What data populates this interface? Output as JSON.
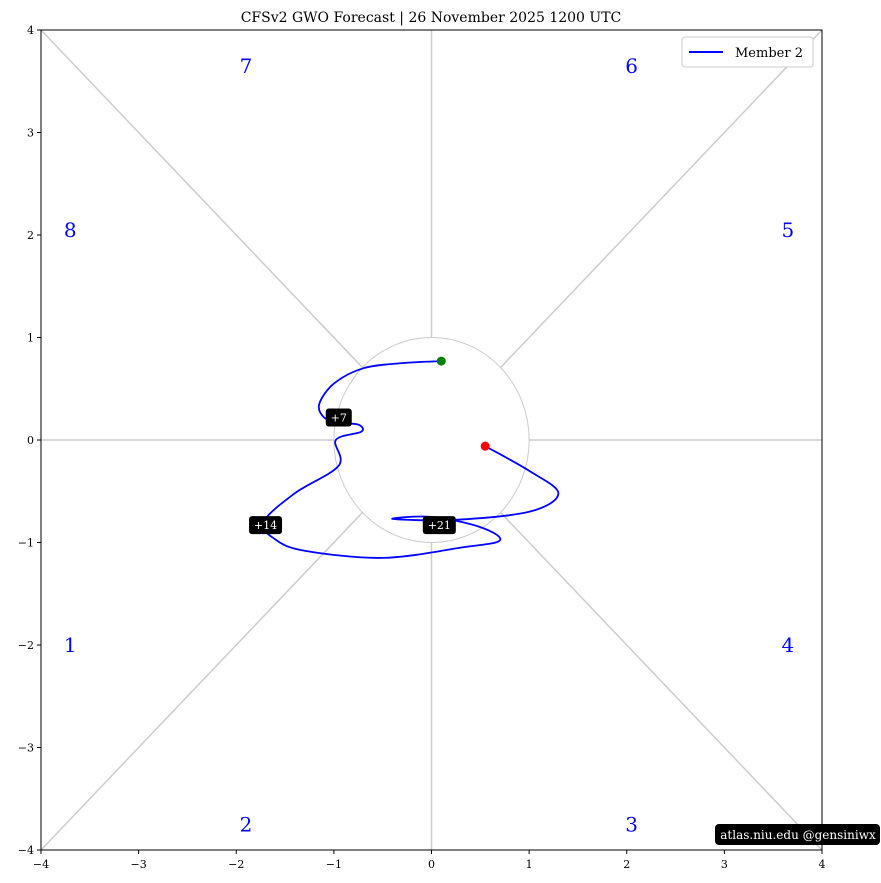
{
  "title": "CFSv2 GWO Forecast   |   26  November  2025 1200 UTC",
  "legend": {
    "label": "Member 2",
    "color": "#0000ff"
  },
  "credit": "atlas.niu.edu  @gensiniwx",
  "chart_data": {
    "type": "line",
    "title": "CFSv2 GWO Forecast   |   26  November  2025 1200 UTC",
    "xlabel": "",
    "ylabel": "",
    "xlim": [
      -4,
      4
    ],
    "ylim": [
      -4,
      4
    ],
    "xticks": [
      "−4",
      "−3",
      "−2",
      "−1",
      "0",
      "1",
      "2",
      "3",
      "4"
    ],
    "yticks": [
      "4",
      "3",
      "2",
      "1",
      "0",
      "−1",
      "−2",
      "−3",
      "−4"
    ],
    "grid": false,
    "legend_position": "top-right",
    "unit_circle_radius": 1,
    "phases": [
      {
        "label": "1",
        "x": -3.7,
        "y": -2.0
      },
      {
        "label": "2",
        "x": -1.9,
        "y": -3.75
      },
      {
        "label": "3",
        "x": 2.05,
        "y": -3.75
      },
      {
        "label": "4",
        "x": 3.65,
        "y": -2.0
      },
      {
        "label": "5",
        "x": 3.65,
        "y": 2.05
      },
      {
        "label": "6",
        "x": 2.05,
        "y": 3.65
      },
      {
        "label": "7",
        "x": -1.9,
        "y": 3.65
      },
      {
        "label": "8",
        "x": -3.7,
        "y": 2.05
      }
    ],
    "series": [
      {
        "name": "Member 2",
        "color": "#0000ff",
        "x": [
          0.1,
          -0.3,
          -0.7,
          -1.0,
          -1.15,
          -1.1,
          -0.95,
          -0.75,
          -0.72,
          -0.98,
          -0.95,
          -1.4,
          -1.72,
          -1.6,
          -1.3,
          -0.5,
          0.3,
          0.7,
          0.5,
          0.0,
          -0.4,
          0.2,
          1.0,
          1.3,
          1.0,
          0.55
        ],
        "y": [
          0.77,
          0.75,
          0.7,
          0.55,
          0.35,
          0.22,
          0.17,
          0.15,
          0.08,
          0.0,
          -0.25,
          -0.52,
          -0.8,
          -0.97,
          -1.08,
          -1.15,
          -1.05,
          -0.98,
          -0.85,
          -0.75,
          -0.77,
          -0.78,
          -0.7,
          -0.52,
          -0.3,
          -0.06
        ]
      }
    ],
    "start_point": {
      "x": 0.1,
      "y": 0.77,
      "color": "#008000"
    },
    "end_point": {
      "x": 0.55,
      "y": -0.06,
      "color": "#ff0000"
    },
    "day_labels": [
      {
        "text": "+7",
        "x": -0.95,
        "y": 0.22
      },
      {
        "text": "+14",
        "x": -1.7,
        "y": -0.83
      },
      {
        "text": "+21",
        "x": 0.08,
        "y": -0.83
      }
    ]
  }
}
